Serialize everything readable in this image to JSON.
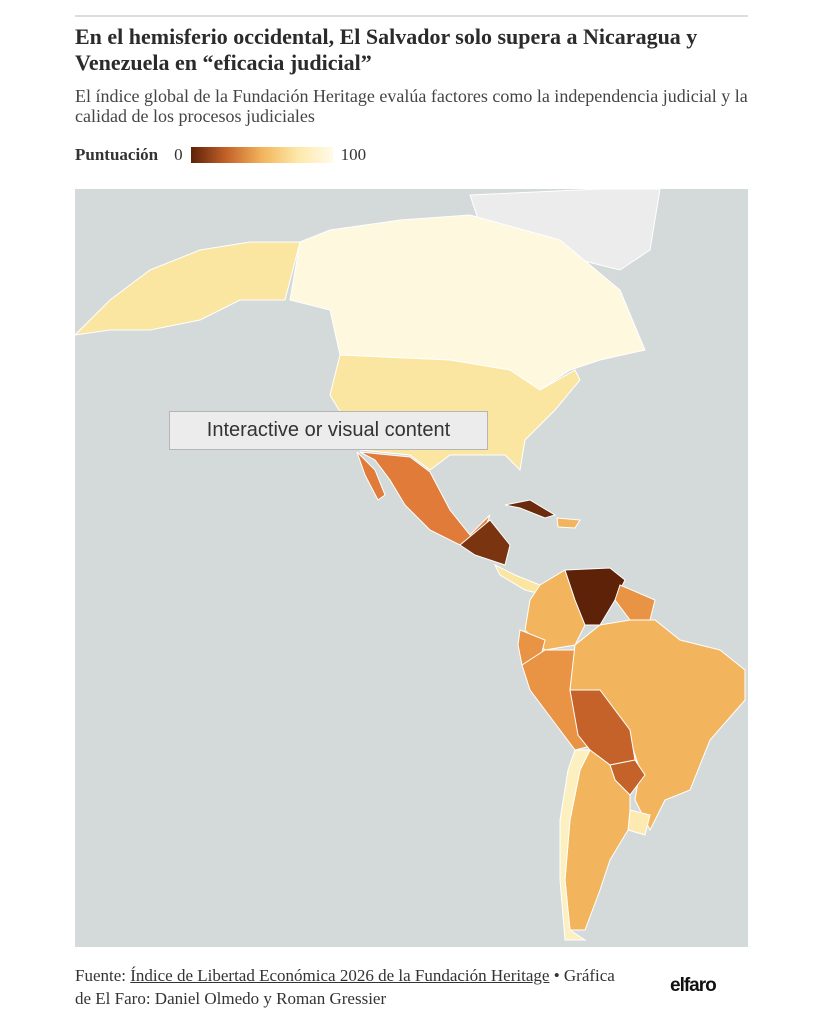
{
  "header": {
    "title": "En el hemisferio occidental, El Salvador solo supera a Nicaragua y Venezuela en “eficacia judicial”",
    "subtitle": "El índice global de la Fundación Heritage evalúa factores como la independencia judicial y la calidad de los procesos judiciales"
  },
  "legend": {
    "label": "Puntuación",
    "min": 0,
    "max": 100
  },
  "overlay": {
    "label": "Interactive or visual content"
  },
  "footer": {
    "prefix": "Fuente:",
    "link": "Índice de Libertad Económica 2026 de la Fundación Heritage",
    "credit": "• Gráfica de El Faro: Daniel Olmedo y Roman Gressier",
    "logo": "elfaro"
  }
}
